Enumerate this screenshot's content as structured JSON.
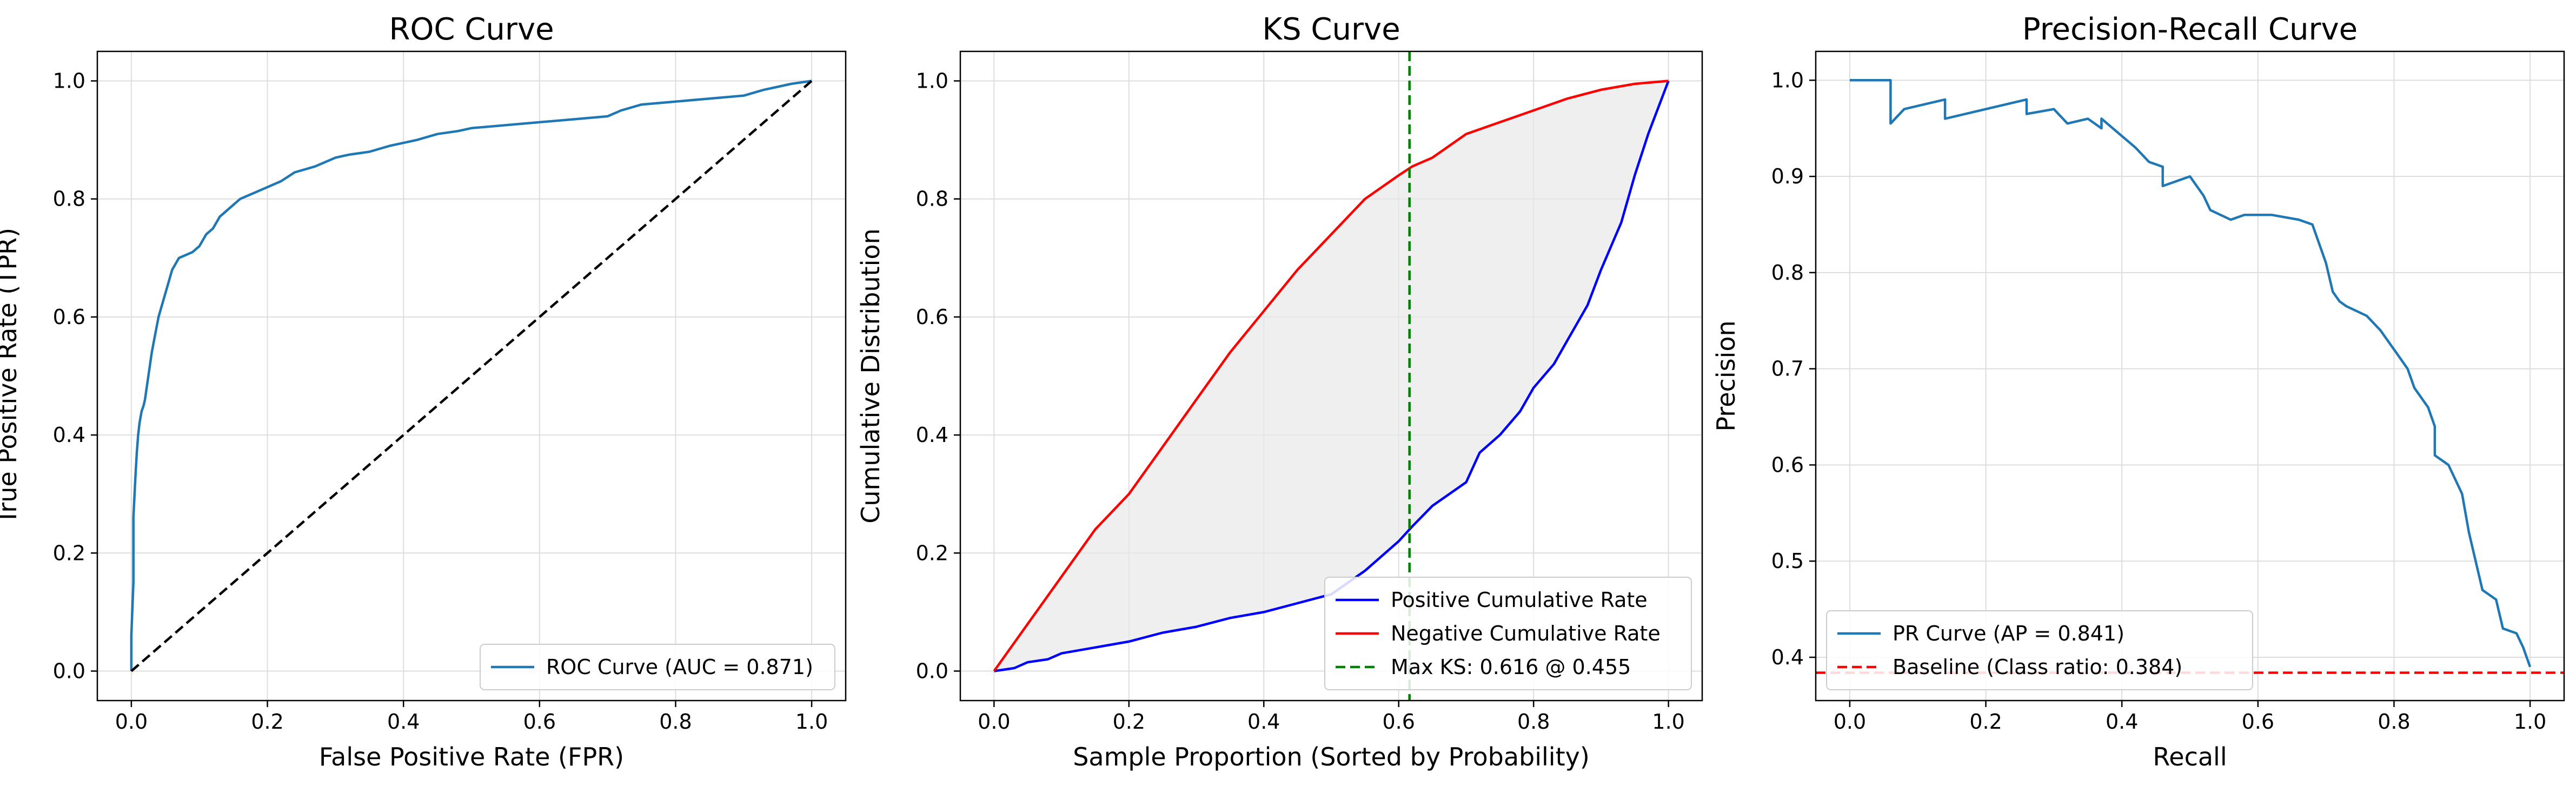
{
  "chart_data": [
    {
      "type": "line",
      "title": "ROC Curve",
      "xlabel": "False Positive Rate (FPR)",
      "ylabel": "True Positive Rate (TPR)",
      "xlim": [
        -0.05,
        1.05
      ],
      "ylim": [
        -0.05,
        1.05
      ],
      "xticks": [
        "0.0",
        "0.2",
        "0.4",
        "0.6",
        "0.8",
        "1.0"
      ],
      "yticks": [
        "0.0",
        "0.2",
        "0.4",
        "0.6",
        "0.8",
        "1.0"
      ],
      "grid": true,
      "legend_position": "lower-right",
      "series": [
        {
          "name": "ROC Curve (AUC = 0.871)",
          "color": "#1f77b4",
          "style": "solid",
          "x": [
            0,
            0,
            0.003,
            0.003,
            0.006,
            0.008,
            0.01,
            0.012,
            0.015,
            0.018,
            0.02,
            0.025,
            0.03,
            0.035,
            0.04,
            0.05,
            0.055,
            0.06,
            0.065,
            0.07,
            0.08,
            0.09,
            0.1,
            0.11,
            0.12,
            0.13,
            0.14,
            0.15,
            0.16,
            0.18,
            0.2,
            0.22,
            0.24,
            0.27,
            0.3,
            0.32,
            0.35,
            0.38,
            0.4,
            0.42,
            0.45,
            0.48,
            0.5,
            0.55,
            0.6,
            0.65,
            0.7,
            0.72,
            0.75,
            0.8,
            0.85,
            0.9,
            0.93,
            0.95,
            0.97,
            1.0
          ],
          "y": [
            0,
            0.06,
            0.15,
            0.26,
            0.33,
            0.37,
            0.4,
            0.42,
            0.44,
            0.45,
            0.46,
            0.5,
            0.54,
            0.57,
            0.6,
            0.64,
            0.66,
            0.68,
            0.69,
            0.7,
            0.705,
            0.71,
            0.72,
            0.74,
            0.75,
            0.77,
            0.78,
            0.79,
            0.8,
            0.81,
            0.82,
            0.83,
            0.845,
            0.855,
            0.87,
            0.875,
            0.88,
            0.89,
            0.895,
            0.9,
            0.91,
            0.915,
            0.92,
            0.925,
            0.93,
            0.935,
            0.94,
            0.95,
            0.96,
            0.965,
            0.97,
            0.975,
            0.985,
            0.99,
            0.995,
            1.0
          ]
        },
        {
          "name": "",
          "color": "#000000",
          "style": "dashed",
          "x": [
            0,
            1
          ],
          "y": [
            0,
            1
          ]
        }
      ]
    },
    {
      "type": "line",
      "title": "KS Curve",
      "xlabel": "Sample Proportion (Sorted by Probability)",
      "ylabel": "Cumulative Distribution",
      "xlim": [
        -0.05,
        1.05
      ],
      "ylim": [
        -0.05,
        1.05
      ],
      "xticks": [
        "0.0",
        "0.2",
        "0.4",
        "0.6",
        "0.8",
        "1.0"
      ],
      "yticks": [
        "0.0",
        "0.2",
        "0.4",
        "0.6",
        "0.8",
        "1.0"
      ],
      "grid": true,
      "legend_position": "lower-right",
      "fill_between": {
        "color": "#e8e8e8",
        "upper_series": 1,
        "lower_series": 0
      },
      "vline": {
        "x": 0.616,
        "color": "#008000",
        "style": "dashed",
        "label": "Max KS: 0.616 @ 0.455"
      },
      "series": [
        {
          "name": "Positive Cumulative Rate",
          "color": "#0000ff",
          "style": "solid",
          "x": [
            0,
            0.03,
            0.05,
            0.08,
            0.1,
            0.15,
            0.2,
            0.25,
            0.3,
            0.35,
            0.4,
            0.45,
            0.5,
            0.55,
            0.6,
            0.62,
            0.65,
            0.7,
            0.72,
            0.75,
            0.78,
            0.8,
            0.83,
            0.85,
            0.88,
            0.9,
            0.93,
            0.95,
            0.97,
            1.0
          ],
          "y": [
            0,
            0.005,
            0.015,
            0.02,
            0.03,
            0.04,
            0.05,
            0.065,
            0.075,
            0.09,
            0.1,
            0.115,
            0.13,
            0.17,
            0.22,
            0.245,
            0.28,
            0.32,
            0.37,
            0.4,
            0.44,
            0.48,
            0.52,
            0.56,
            0.62,
            0.68,
            0.76,
            0.84,
            0.91,
            1.0
          ]
        },
        {
          "name": "Negative Cumulative Rate",
          "color": "#ff0000",
          "style": "solid",
          "x": [
            0,
            0.05,
            0.1,
            0.15,
            0.2,
            0.25,
            0.3,
            0.35,
            0.4,
            0.45,
            0.5,
            0.55,
            0.6,
            0.62,
            0.65,
            0.7,
            0.75,
            0.8,
            0.85,
            0.9,
            0.95,
            1.0
          ],
          "y": [
            0,
            0.08,
            0.16,
            0.24,
            0.3,
            0.38,
            0.46,
            0.54,
            0.61,
            0.68,
            0.74,
            0.8,
            0.84,
            0.855,
            0.87,
            0.91,
            0.93,
            0.95,
            0.97,
            0.985,
            0.995,
            1.0
          ]
        }
      ]
    },
    {
      "type": "line",
      "title": "Precision-Recall Curve",
      "xlabel": "Recall",
      "ylabel": "Precision",
      "xlim": [
        -0.05,
        1.05
      ],
      "ylim": [
        0.355,
        1.03
      ],
      "xticks": [
        "0.0",
        "0.2",
        "0.4",
        "0.6",
        "0.8",
        "1.0"
      ],
      "yticks": [
        "0.4",
        "0.5",
        "0.6",
        "0.7",
        "0.8",
        "0.9",
        "1.0"
      ],
      "grid": true,
      "legend_position": "lower-left",
      "series": [
        {
          "name": "PR Curve (AP = 0.841)",
          "color": "#1f77b4",
          "style": "solid",
          "x": [
            0,
            0.06,
            0.06,
            0.08,
            0.14,
            0.14,
            0.2,
            0.26,
            0.26,
            0.3,
            0.32,
            0.35,
            0.37,
            0.37,
            0.42,
            0.44,
            0.46,
            0.46,
            0.5,
            0.52,
            0.53,
            0.56,
            0.58,
            0.62,
            0.66,
            0.68,
            0.7,
            0.71,
            0.72,
            0.73,
            0.76,
            0.78,
            0.8,
            0.82,
            0.83,
            0.85,
            0.86,
            0.86,
            0.88,
            0.9,
            0.91,
            0.92,
            0.93,
            0.95,
            0.96,
            0.98,
            0.99,
            1.0
          ],
          "y": [
            1.0,
            1.0,
            0.955,
            0.97,
            0.98,
            0.96,
            0.97,
            0.98,
            0.965,
            0.97,
            0.955,
            0.96,
            0.95,
            0.96,
            0.93,
            0.915,
            0.91,
            0.89,
            0.9,
            0.88,
            0.865,
            0.855,
            0.86,
            0.86,
            0.855,
            0.85,
            0.81,
            0.78,
            0.77,
            0.765,
            0.755,
            0.74,
            0.72,
            0.7,
            0.68,
            0.66,
            0.64,
            0.61,
            0.6,
            0.57,
            0.53,
            0.5,
            0.47,
            0.46,
            0.43,
            0.425,
            0.41,
            0.39
          ]
        },
        {
          "name": "Baseline (Class ratio: 0.384)",
          "color": "#ff0000",
          "style": "dashed",
          "hline": 0.384
        }
      ]
    }
  ]
}
